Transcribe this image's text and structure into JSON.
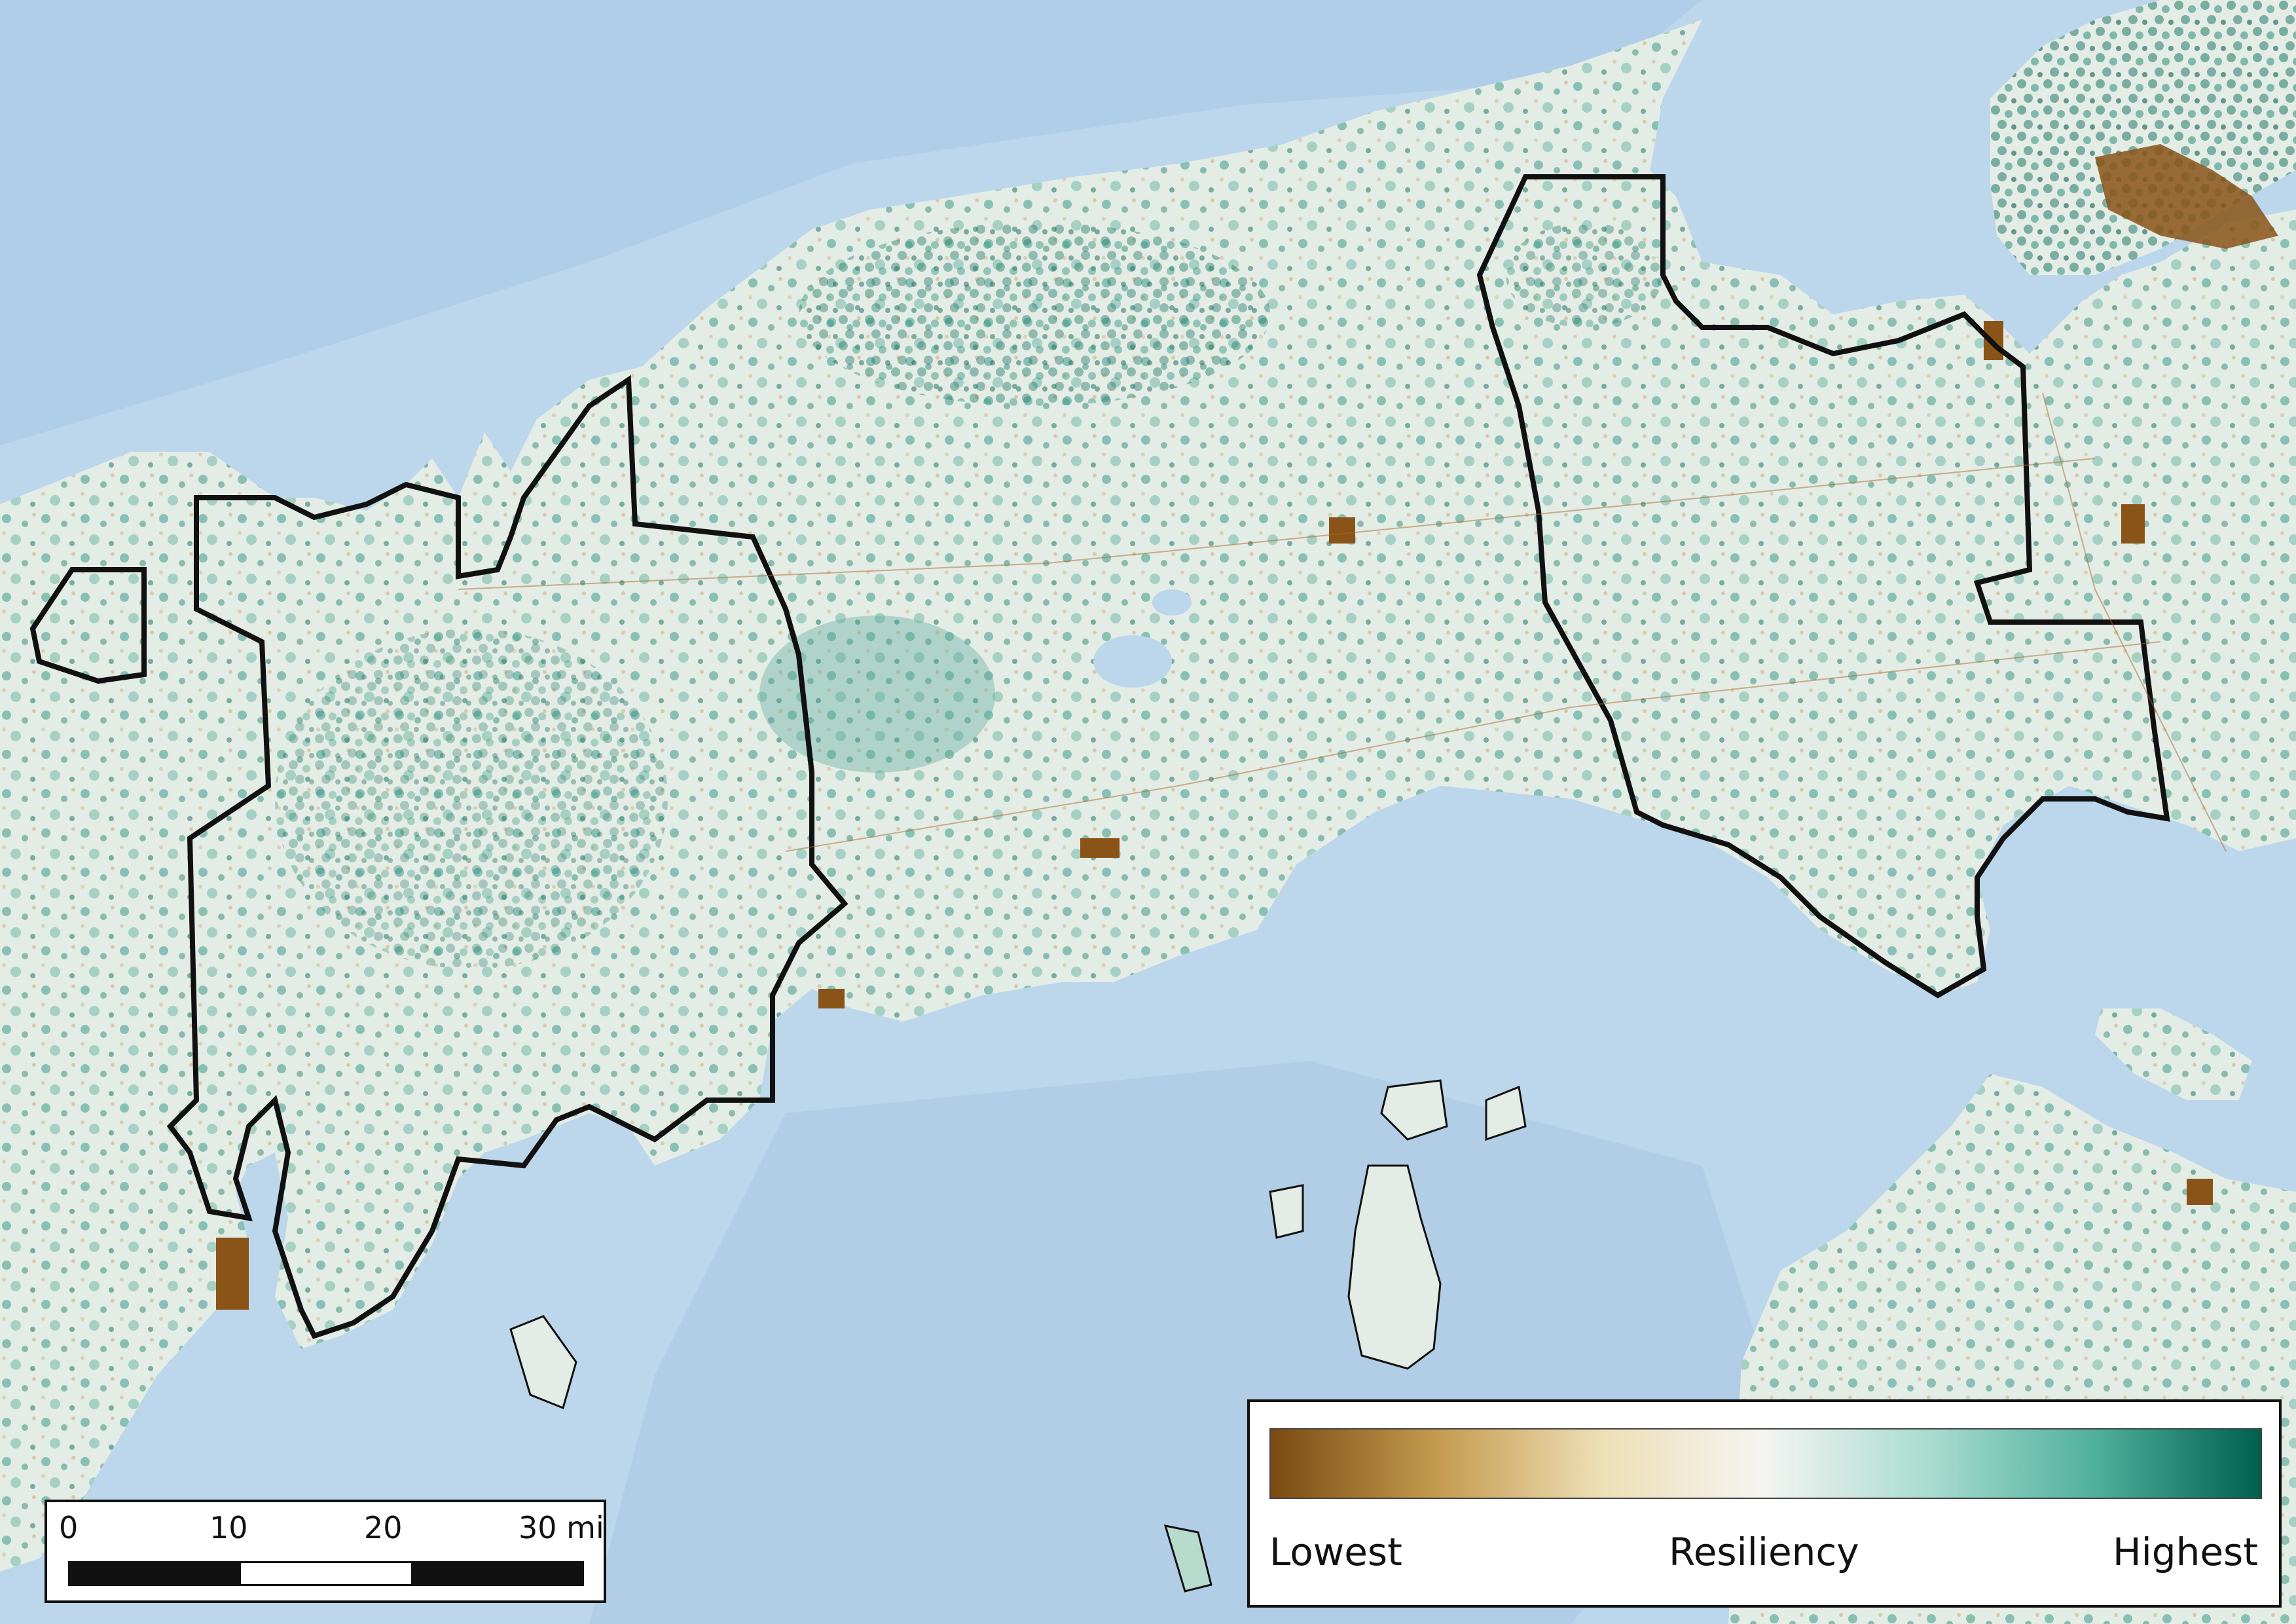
{
  "map": {
    "colors": {
      "water": "#bcd6ec",
      "water_deep": "#a9c8e4",
      "land_base": "#e4ece6",
      "boundary": "#111111",
      "urban": "#8a5418"
    }
  },
  "legend": {
    "low_label": "Lowest",
    "mid_label": "Resiliency",
    "high_label": "Highest",
    "ramp_colors": [
      "#7a4a12",
      "#c49a4e",
      "#eedfb6",
      "#f4f4f2",
      "#a8dccf",
      "#4fb09c",
      "#00604e"
    ]
  },
  "scale_bar": {
    "ticks": [
      "0",
      "10",
      "20",
      "30 mi"
    ],
    "segment_count": 3
  }
}
